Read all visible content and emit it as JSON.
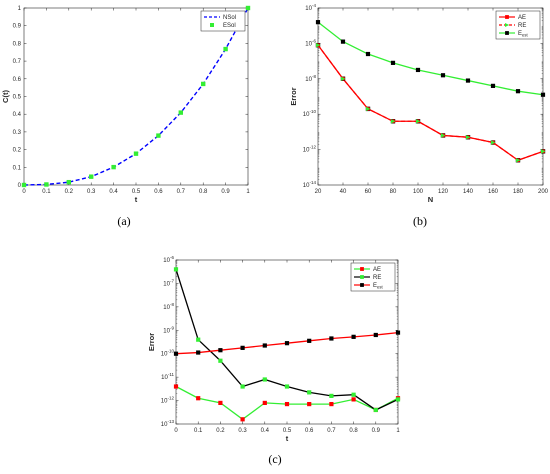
{
  "chart_data": [
    {
      "type": "line",
      "caption": "(a)",
      "xlabel": "t",
      "ylabel": "C(t)",
      "xlim": [
        0,
        1
      ],
      "ylim": [
        0,
        1
      ],
      "yscale": "linear",
      "xticks": [
        "0",
        "0.1",
        "0.2",
        "0.3",
        "0.4",
        "0.5",
        "0.6",
        "0.7",
        "0.8",
        "0.9",
        "1"
      ],
      "yticks": [
        "0",
        "0.1",
        "0.2",
        "0.3",
        "0.4",
        "0.5",
        "0.6",
        "0.7",
        "0.8",
        "0.9",
        "1"
      ],
      "legend_position": "top-right",
      "series": [
        {
          "name": "NSol",
          "style": "dashed-line",
          "color": "#0000ff",
          "x": [
            0,
            0.1,
            0.2,
            0.3,
            0.4,
            0.5,
            0.6,
            0.7,
            0.8,
            0.9,
            1
          ],
          "y": [
            0,
            0.003,
            0.016,
            0.047,
            0.101,
            0.177,
            0.279,
            0.409,
            0.571,
            0.768,
            1.0
          ]
        },
        {
          "name": "ESol",
          "style": "square-markers",
          "color": "#33ee33",
          "x": [
            0,
            0.1,
            0.2,
            0.3,
            0.4,
            0.5,
            0.6,
            0.7,
            0.8,
            0.9,
            1
          ],
          "y": [
            0,
            0.003,
            0.016,
            0.047,
            0.101,
            0.177,
            0.279,
            0.409,
            0.571,
            0.768,
            1.0
          ]
        }
      ]
    },
    {
      "type": "line",
      "caption": "(b)",
      "xlabel": "N",
      "ylabel": "Error",
      "xlim": [
        20,
        200
      ],
      "ylim": [
        -14,
        -4
      ],
      "yscale": "log10",
      "xticks": [
        "20",
        "40",
        "60",
        "80",
        "100",
        "120",
        "140",
        "160",
        "180",
        "200"
      ],
      "yticks": [
        "10^-4",
        "10^-6",
        "10^-8",
        "10^-10",
        "10^-12",
        "10^-14"
      ],
      "legend_position": "top-right",
      "series": [
        {
          "name": "AE",
          "color": "#ff0000",
          "marker": "square",
          "x": [
            20,
            40,
            60,
            80,
            100,
            120,
            140,
            160,
            180,
            200
          ],
          "y": [
            -6.1,
            -8.0,
            -9.7,
            -10.4,
            -10.4,
            -11.2,
            -11.3,
            -11.6,
            -12.6,
            -12.1
          ]
        },
        {
          "name": "RE",
          "color": "#ff0000",
          "marker": "triangle",
          "x": [
            20,
            40,
            60,
            80,
            100,
            120,
            140,
            160,
            180,
            200
          ],
          "y": [
            -6.1,
            -8.0,
            -9.7,
            -10.4,
            -10.4,
            -11.2,
            -11.3,
            -11.6,
            -12.6,
            -12.1
          ]
        },
        {
          "name": "E",
          "name_sub": "est",
          "color": "#33ee33",
          "marker": "square-black",
          "x": [
            20,
            40,
            60,
            80,
            100,
            120,
            140,
            160,
            180,
            200
          ],
          "y": [
            -4.8,
            -5.9,
            -6.6,
            -7.1,
            -7.5,
            -7.8,
            -8.1,
            -8.4,
            -8.7,
            -8.9
          ]
        }
      ]
    },
    {
      "type": "line",
      "caption": "(c)",
      "xlabel": "t",
      "ylabel": "Error",
      "xlim": [
        0,
        1
      ],
      "ylim": [
        -13,
        -6
      ],
      "yscale": "log10",
      "xticks": [
        "0",
        "0.1",
        "0.2",
        "0.3",
        "0.4",
        "0.5",
        "0.6",
        "0.7",
        "0.8",
        "0.9",
        "1"
      ],
      "yticks": [
        "10^-6",
        "10^-7",
        "10^-8",
        "10^-9",
        "10^-10",
        "10^-11",
        "10^-12",
        "10^-13"
      ],
      "legend_position": "top-right",
      "series": [
        {
          "name": "AE",
          "color": "#33ee33",
          "marker": "square-red",
          "x": [
            0,
            0.1,
            0.2,
            0.3,
            0.4,
            0.5,
            0.6,
            0.7,
            0.8,
            0.9,
            1
          ],
          "y": [
            -11.4,
            -11.9,
            -12.1,
            -12.8,
            -12.1,
            -12.15,
            -12.15,
            -12.15,
            -11.95,
            -12.4,
            -11.9
          ]
        },
        {
          "name": "RE",
          "color": "#000000",
          "marker": "square-green",
          "x": [
            0,
            0.1,
            0.2,
            0.3,
            0.4,
            0.5,
            0.6,
            0.7,
            0.8,
            0.9,
            1
          ],
          "y": [
            -6.4,
            -9.4,
            -10.3,
            -11.4,
            -11.1,
            -11.4,
            -11.65,
            -11.8,
            -11.75,
            -12.4,
            -11.95
          ]
        },
        {
          "name": "E",
          "name_sub": "est",
          "color": "#ff0000",
          "marker": "square-black",
          "x": [
            0,
            0.1,
            0.2,
            0.3,
            0.4,
            0.5,
            0.6,
            0.7,
            0.8,
            0.9,
            1
          ],
          "y": [
            -10.0,
            -9.95,
            -9.85,
            -9.75,
            -9.65,
            -9.55,
            -9.45,
            -9.35,
            -9.28,
            -9.2,
            -9.1
          ]
        }
      ]
    }
  ]
}
